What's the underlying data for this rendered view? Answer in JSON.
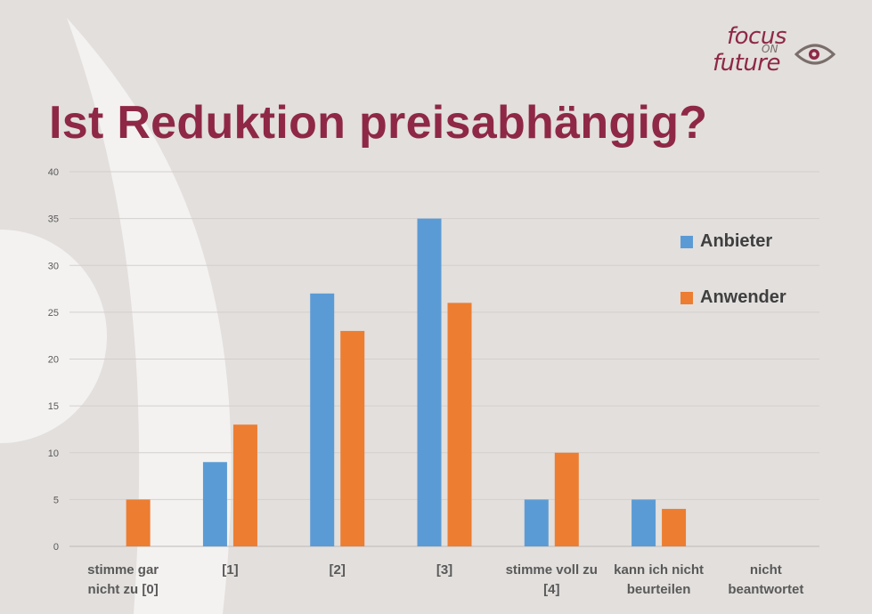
{
  "title": "Ist Reduktion preisabhängig?",
  "logo": {
    "line1": "focus",
    "line2": "ON",
    "line3": "future"
  },
  "colors": {
    "accent": "#8e2846",
    "series1": "#5b9bd5",
    "series2": "#ed7d31",
    "background": "#e2dfdd"
  },
  "chart_data": {
    "type": "bar",
    "title": "",
    "categories": [
      [
        "stimme gar",
        "nicht zu [0]"
      ],
      [
        "[1]"
      ],
      [
        "[2]"
      ],
      [
        "[3]"
      ],
      [
        "stimme voll zu",
        "[4]"
      ],
      [
        "kann ich nicht",
        "beurteilen"
      ],
      [
        "nicht",
        "beantwortet"
      ]
    ],
    "series": [
      {
        "name": "Anbieter",
        "color": "#5b9bd5",
        "values": [
          0,
          9,
          27,
          35,
          5,
          5,
          0
        ]
      },
      {
        "name": "Anwender",
        "color": "#ed7d31",
        "values": [
          5,
          13,
          23,
          26,
          10,
          4,
          0
        ]
      }
    ],
    "ylim": [
      0,
      40
    ],
    "yticks": [
      0,
      5,
      10,
      15,
      20,
      25,
      30,
      35,
      40
    ],
    "grid": true,
    "legend_position": "right"
  }
}
